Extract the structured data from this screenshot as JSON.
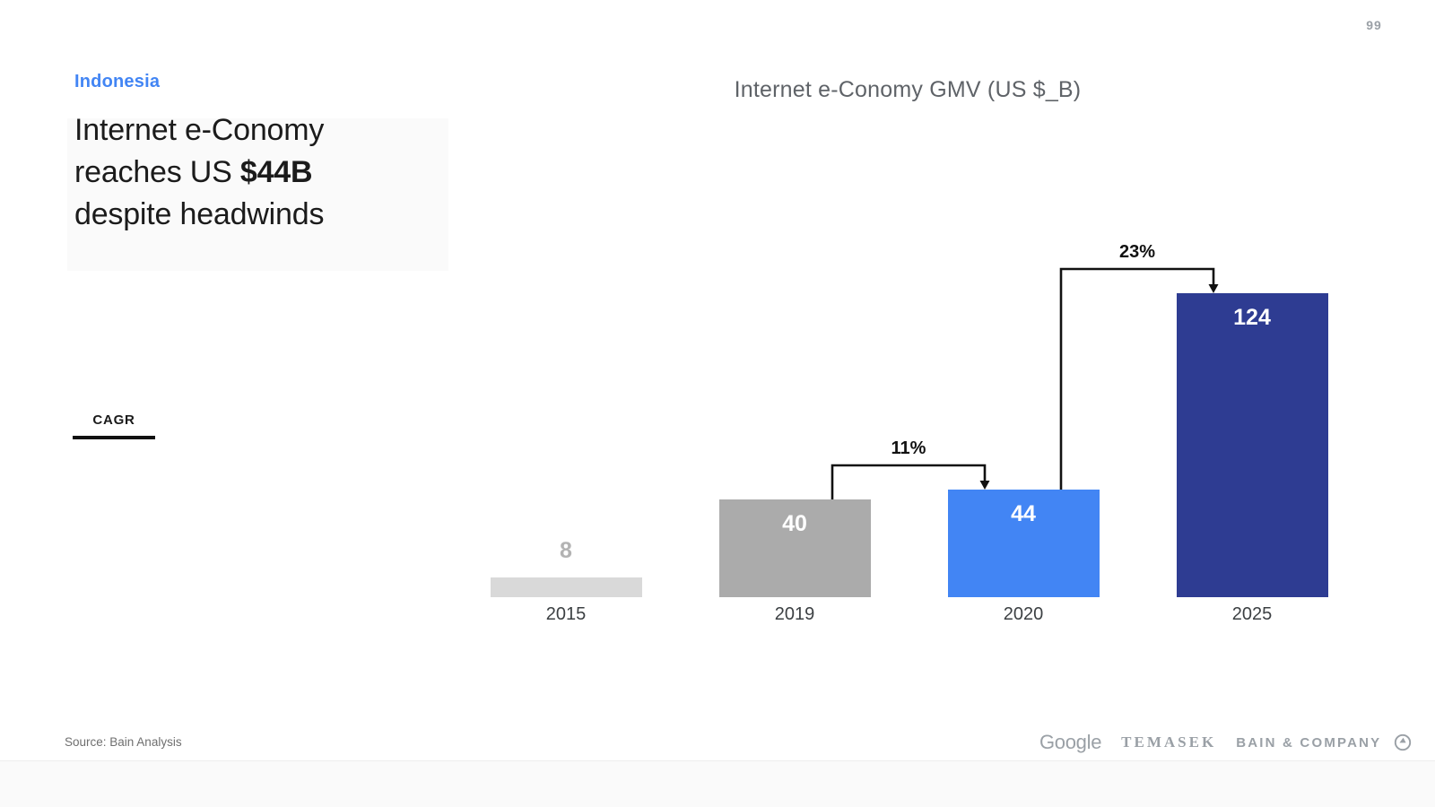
{
  "page": {
    "number": "99"
  },
  "header": {
    "region": "Indonesia",
    "title_line1": "Internet e-Conomy",
    "title_line2_prefix": "reaches US ",
    "title_line2_bold": "$44B",
    "title_line3": "despite headwinds"
  },
  "legend": {
    "cagr_label": "CAGR"
  },
  "chart_data": {
    "type": "bar",
    "title": "Internet e-Conomy GMV (US $_B)",
    "categories": [
      "2015",
      "2019",
      "2020",
      "2025"
    ],
    "values": [
      8,
      40,
      44,
      124
    ],
    "bar_colors": [
      "#d9d9d9",
      "#ababab",
      "#4285f4",
      "#2e3c92"
    ],
    "value_label_colors": [
      "#b3b3b3",
      "#ffffff",
      "#ffffff",
      "#ffffff"
    ],
    "value_label_inside": [
      false,
      true,
      true,
      true
    ],
    "annotations": [
      {
        "label": "11%",
        "from": 1,
        "to": 2
      },
      {
        "label": "23%",
        "from": 2,
        "to": 3
      }
    ],
    "xlabel": "",
    "ylabel": "",
    "ylim": [
      0,
      130
    ],
    "grid": false,
    "legend_position": "none"
  },
  "footer": {
    "source": "Source: Bain Analysis",
    "logos": {
      "google": "Google",
      "temasek": "TEMASEK",
      "bain": "BAIN & COMPANY"
    },
    "badge_icon": "compass-circle-icon"
  }
}
